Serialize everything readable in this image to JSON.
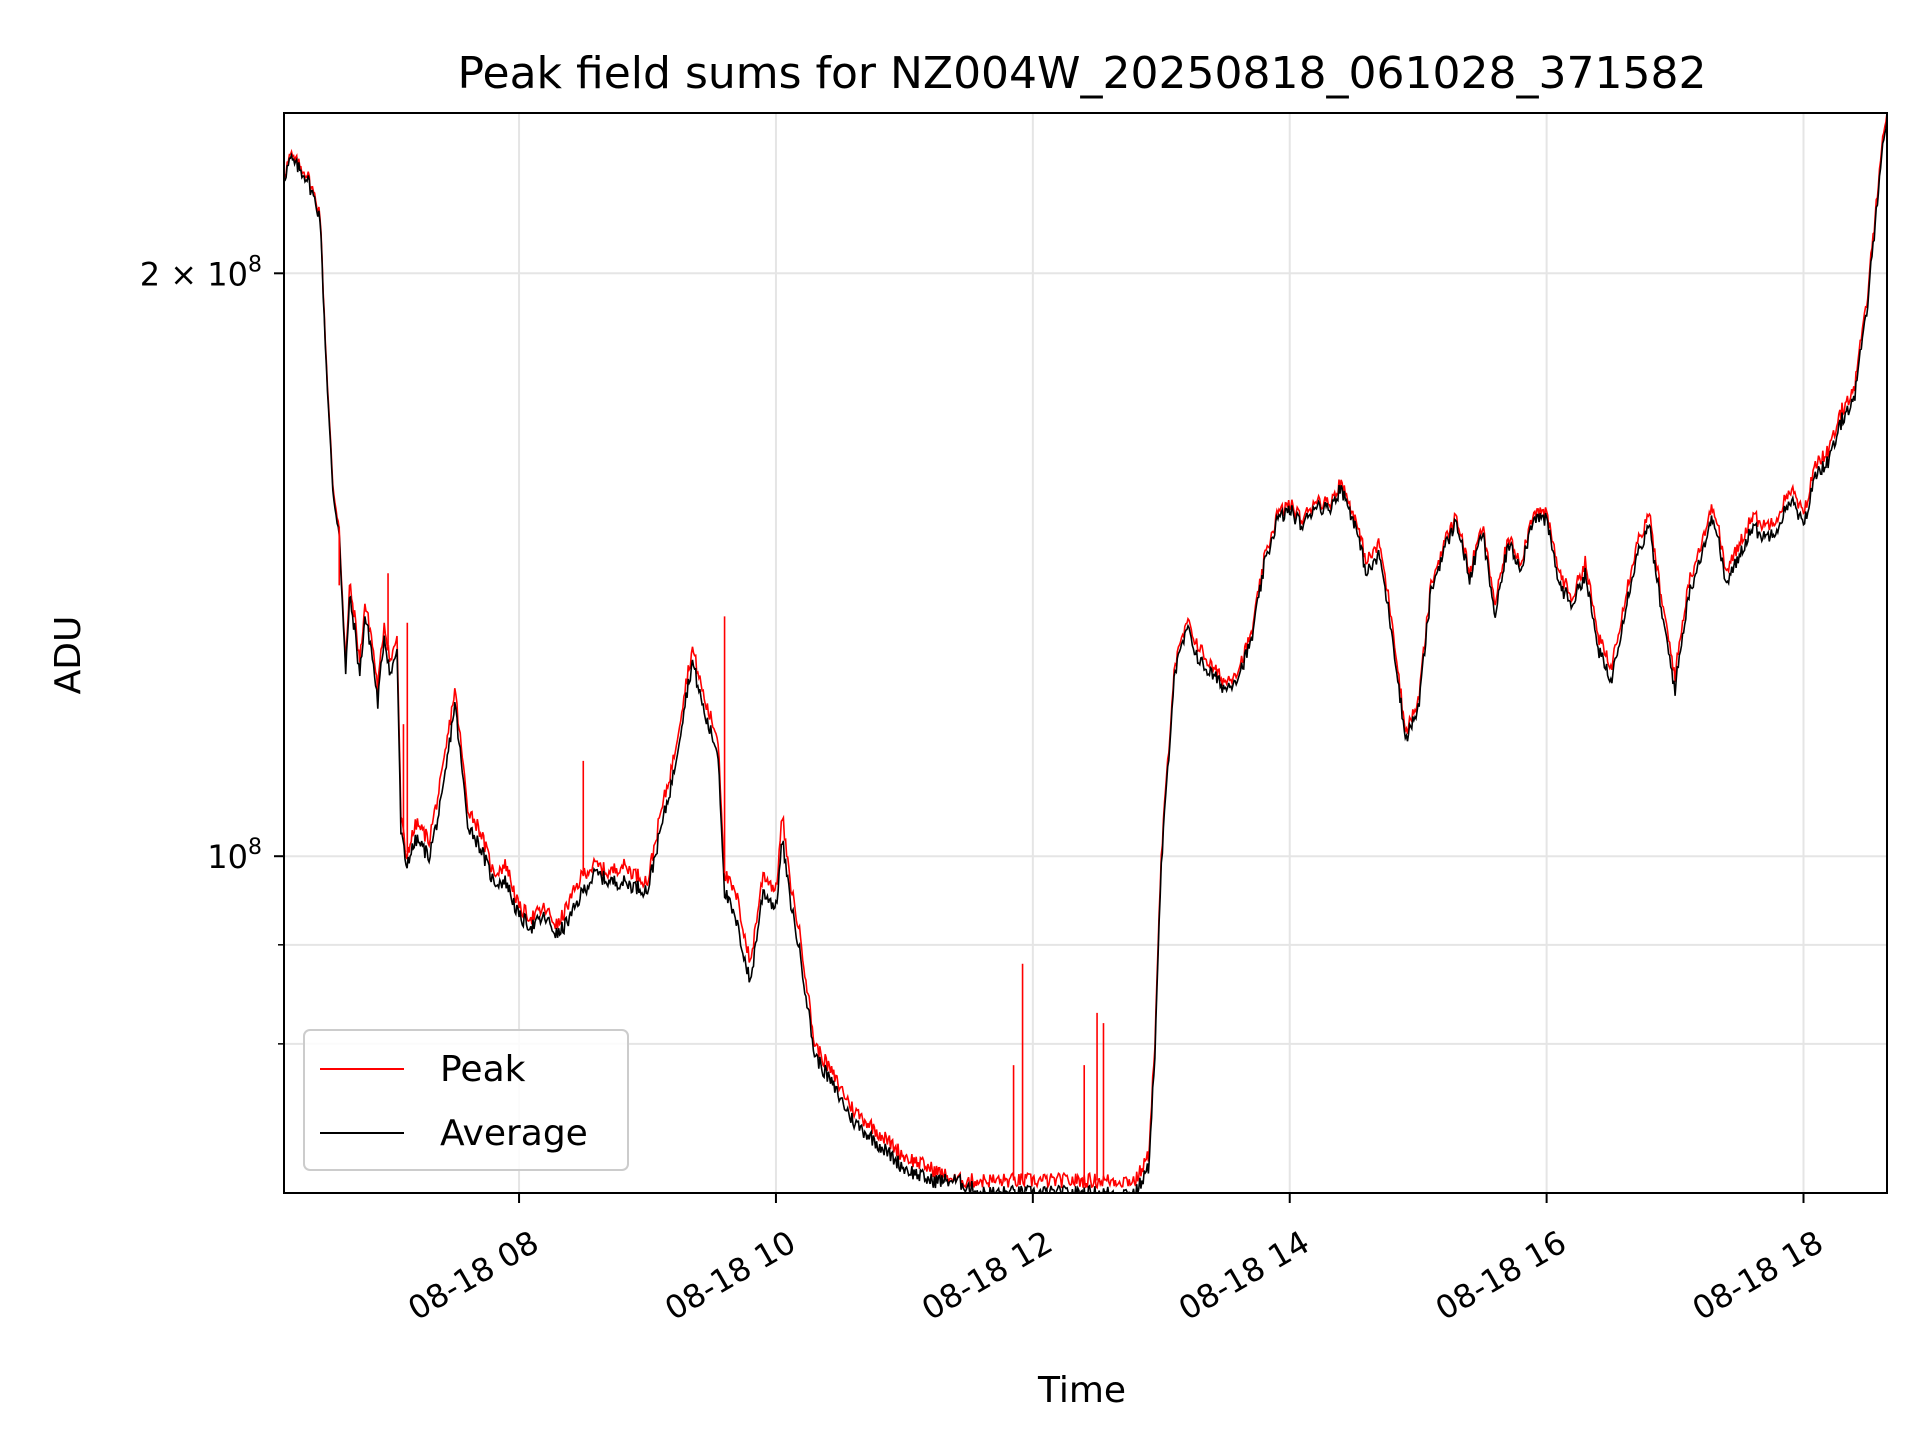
{
  "chart_data": {
    "type": "line",
    "title": "Peak field sums for NZ004W_20250818_061028_371582",
    "xlabel": "Time",
    "ylabel": "ADU",
    "yscale": "log",
    "ylim": [
      67000000,
      242000000
    ],
    "xlim_hours": [
      6.17,
      18.65
    ],
    "grid": true,
    "legend_placement": "lower-left",
    "x_ticks": [
      {
        "hour": 8,
        "label": "08-18 08"
      },
      {
        "hour": 10,
        "label": "08-18 10"
      },
      {
        "hour": 12,
        "label": "08-18 12"
      },
      {
        "hour": 14,
        "label": "08-18 14"
      },
      {
        "hour": 16,
        "label": "08-18 16"
      },
      {
        "hour": 18,
        "label": "08-18 18"
      }
    ],
    "y_ticks_major": [
      {
        "value": 100000000,
        "label_base": "10",
        "label_exp": "8",
        "label_prefix": ""
      },
      {
        "value": 200000000,
        "label_base": "10",
        "label_exp": "8",
        "label_prefix": "2 × "
      }
    ],
    "y_ticks_minor": [
      80000000,
      90000000
    ],
    "series": [
      {
        "name": "Peak",
        "color": "#ff0000",
        "x_hours": [
          6.17,
          6.22,
          6.35,
          6.45,
          6.5,
          6.55,
          6.6,
          6.65,
          6.68,
          6.72,
          6.76,
          6.8,
          6.85,
          6.9,
          6.95,
          7.0,
          7.05,
          7.08,
          7.12,
          7.2,
          7.3,
          7.4,
          7.5,
          7.6,
          7.7,
          7.8,
          7.9,
          8.0,
          8.1,
          8.2,
          8.3,
          8.4,
          8.5,
          8.6,
          8.7,
          8.8,
          9.0,
          9.1,
          9.2,
          9.3,
          9.35,
          9.45,
          9.55,
          9.6,
          9.7,
          9.8,
          9.9,
          10.0,
          10.05,
          10.1,
          10.2,
          10.3,
          10.4,
          10.5,
          10.6,
          10.8,
          10.9,
          11.0,
          11.2,
          11.4,
          11.6,
          11.8,
          12.0,
          12.2,
          12.4,
          12.6,
          12.8,
          12.9,
          12.95,
          13.0,
          13.1,
          13.2,
          13.3,
          13.4,
          13.5,
          13.6,
          13.7,
          13.8,
          13.9,
          14.0,
          14.1,
          14.2,
          14.3,
          14.4,
          14.5,
          14.6,
          14.7,
          14.8,
          14.9,
          15.0,
          15.1,
          15.2,
          15.3,
          15.4,
          15.5,
          15.6,
          15.7,
          15.8,
          15.9,
          16.0,
          16.1,
          16.2,
          16.3,
          16.4,
          16.5,
          16.6,
          16.7,
          16.8,
          16.9,
          17.0,
          17.1,
          17.2,
          17.3,
          17.4,
          17.5,
          17.6,
          17.7,
          17.8,
          17.9,
          18.0,
          18.1,
          18.2,
          18.3,
          18.4,
          18.5,
          18.6,
          18.65
        ],
        "values": [
          225,
          230,
          225,
          215,
          180,
          155,
          148,
          125,
          138,
          133,
          126,
          135,
          130,
          122,
          132,
          126,
          130,
          105,
          100,
          104,
          102,
          110,
          122,
          106,
          103,
          98,
          99,
          94,
          93,
          94,
          92,
          95,
          98,
          99,
          98,
          99,
          97,
          105,
          112,
          123,
          128,
          120,
          115,
          98,
          95,
          88,
          98,
          96,
          105,
          98,
          90,
          80,
          78,
          76,
          74,
          72,
          71,
          70,
          69,
          68,
          68,
          68,
          68,
          68,
          68,
          68,
          68,
          70,
          80,
          100,
          125,
          132,
          128,
          125,
          123,
          125,
          130,
          142,
          150,
          152,
          149,
          153,
          152,
          156,
          150,
          142,
          145,
          132,
          116,
          120,
          138,
          145,
          150,
          140,
          148,
          135,
          146,
          142,
          151,
          150,
          140,
          136,
          142,
          130,
          125,
          135,
          145,
          150,
          135,
          124,
          138,
          145,
          152,
          140,
          145,
          150,
          148,
          150,
          155,
          150,
          160,
          162,
          170,
          175,
          195,
          230,
          242
        ]
      },
      {
        "name": "Average",
        "color": "#000000",
        "x_hours": [
          6.17,
          6.22,
          6.35,
          6.45,
          6.5,
          6.55,
          6.6,
          6.65,
          6.68,
          6.72,
          6.76,
          6.8,
          6.85,
          6.9,
          6.95,
          7.0,
          7.05,
          7.08,
          7.12,
          7.2,
          7.3,
          7.4,
          7.5,
          7.6,
          7.7,
          7.8,
          7.9,
          8.0,
          8.1,
          8.2,
          8.3,
          8.4,
          8.5,
          8.6,
          8.7,
          8.8,
          9.0,
          9.1,
          9.2,
          9.3,
          9.35,
          9.45,
          9.55,
          9.6,
          9.7,
          9.8,
          9.9,
          10.0,
          10.05,
          10.1,
          10.2,
          10.3,
          10.4,
          10.5,
          10.6,
          10.8,
          10.9,
          11.0,
          11.2,
          11.4,
          11.6,
          11.8,
          12.0,
          12.2,
          12.4,
          12.6,
          12.8,
          12.9,
          12.95,
          13.0,
          13.1,
          13.2,
          13.3,
          13.4,
          13.5,
          13.6,
          13.7,
          13.8,
          13.9,
          14.0,
          14.1,
          14.2,
          14.3,
          14.4,
          14.5,
          14.6,
          14.7,
          14.8,
          14.9,
          15.0,
          15.1,
          15.2,
          15.3,
          15.4,
          15.5,
          15.6,
          15.7,
          15.8,
          15.9,
          16.0,
          16.1,
          16.2,
          16.3,
          16.4,
          16.5,
          16.6,
          16.7,
          16.8,
          16.9,
          17.0,
          17.1,
          17.2,
          17.3,
          17.4,
          17.5,
          17.6,
          17.7,
          17.8,
          17.9,
          18.0,
          18.1,
          18.2,
          18.3,
          18.4,
          18.5,
          18.6,
          18.65
        ],
        "values": [
          224,
          229,
          224,
          214,
          179,
          154,
          147,
          124,
          136,
          131,
          124,
          133,
          128,
          120,
          130,
          124,
          128,
          103,
          99,
          102,
          100,
          107,
          120,
          104,
          101,
          97,
          97,
          93,
          92,
          93,
          91,
          93,
          96,
          98,
          97,
          97,
          96,
          103,
          110,
          121,
          126,
          118,
          113,
          96,
          92,
          86,
          96,
          94,
          102,
          96,
          88,
          79,
          77,
          75,
          73,
          71,
          70,
          69,
          68,
          68,
          67,
          67,
          67,
          67,
          67,
          67,
          67,
          69,
          79,
          99,
          124,
          131,
          126,
          124,
          122,
          124,
          129,
          141,
          149,
          151,
          148,
          152,
          151,
          155,
          149,
          140,
          143,
          130,
          115,
          119,
          137,
          144,
          149,
          139,
          147,
          133,
          145,
          141,
          150,
          149,
          138,
          135,
          140,
          128,
          123,
          133,
          143,
          148,
          133,
          122,
          136,
          143,
          150,
          138,
          143,
          148,
          146,
          148,
          153,
          148,
          158,
          160,
          168,
          173,
          193,
          228,
          240
        ]
      }
    ],
    "spikes": [
      {
        "series": "Peak",
        "hour": 7.1,
        "value": 117
      },
      {
        "series": "Peak",
        "hour": 7.13,
        "value": 132
      },
      {
        "series": "Peak",
        "hour": 6.98,
        "value": 140
      },
      {
        "series": "Peak",
        "hour": 6.6,
        "value": 138
      },
      {
        "series": "Peak",
        "hour": 8.5,
        "value": 112
      },
      {
        "series": "Peak",
        "hour": 9.6,
        "value": 133
      },
      {
        "series": "Peak",
        "hour": 11.92,
        "value": 88
      },
      {
        "series": "Peak",
        "hour": 12.5,
        "value": 83
      },
      {
        "series": "Peak",
        "hour": 12.55,
        "value": 82
      },
      {
        "series": "Peak",
        "hour": 11.85,
        "value": 78
      },
      {
        "series": "Peak",
        "hour": 12.4,
        "value": 78
      }
    ]
  }
}
